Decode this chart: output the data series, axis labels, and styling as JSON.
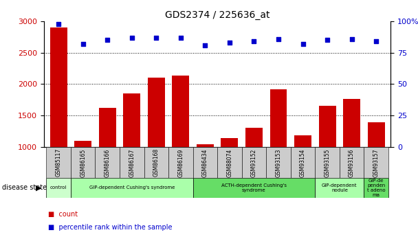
{
  "title": "GDS2374 / 225636_at",
  "samples": [
    "GSM85117",
    "GSM86165",
    "GSM86166",
    "GSM86167",
    "GSM86168",
    "GSM86169",
    "GSM86434",
    "GSM88074",
    "GSM93152",
    "GSM93153",
    "GSM93154",
    "GSM93155",
    "GSM93156",
    "GSM93157"
  ],
  "counts": [
    2900,
    1100,
    1620,
    1850,
    2100,
    2140,
    1040,
    1140,
    1310,
    1920,
    1190,
    1660,
    1760,
    1390
  ],
  "percentiles": [
    98,
    82,
    85,
    87,
    87,
    87,
    81,
    83,
    84,
    86,
    82,
    85,
    86,
    84
  ],
  "bar_color": "#cc0000",
  "dot_color": "#0000cc",
  "ylim_left": [
    1000,
    3000
  ],
  "ylim_right": [
    0,
    100
  ],
  "yticks_left": [
    1000,
    1500,
    2000,
    2500,
    3000
  ],
  "yticks_right": [
    0,
    25,
    50,
    75,
    100
  ],
  "disease_groups": [
    {
      "label": "control",
      "start": 0,
      "end": 1,
      "color": "#ccffcc"
    },
    {
      "label": "GIP-dependent Cushing's syndrome",
      "start": 1,
      "end": 6,
      "color": "#aaffaa"
    },
    {
      "label": "ACTH-dependent Cushing's\nsyndrome",
      "start": 6,
      "end": 11,
      "color": "#66dd66"
    },
    {
      "label": "GIP-dependent\nnodule",
      "start": 11,
      "end": 13,
      "color": "#aaffaa"
    },
    {
      "label": "GIP-de\npenden\nt adeno\nma",
      "start": 13,
      "end": 14,
      "color": "#66dd66"
    }
  ],
  "disease_state_label": "disease state",
  "legend_items": [
    {
      "color": "#cc0000",
      "label": "count"
    },
    {
      "color": "#0000cc",
      "label": "percentile rank within the sample"
    }
  ],
  "background_color": "#ffffff",
  "tick_label_color_left": "#cc0000",
  "tick_label_color_right": "#0000cc",
  "grid_color": "#000000",
  "bar_width": 0.7,
  "xtick_bg_color": "#cccccc"
}
